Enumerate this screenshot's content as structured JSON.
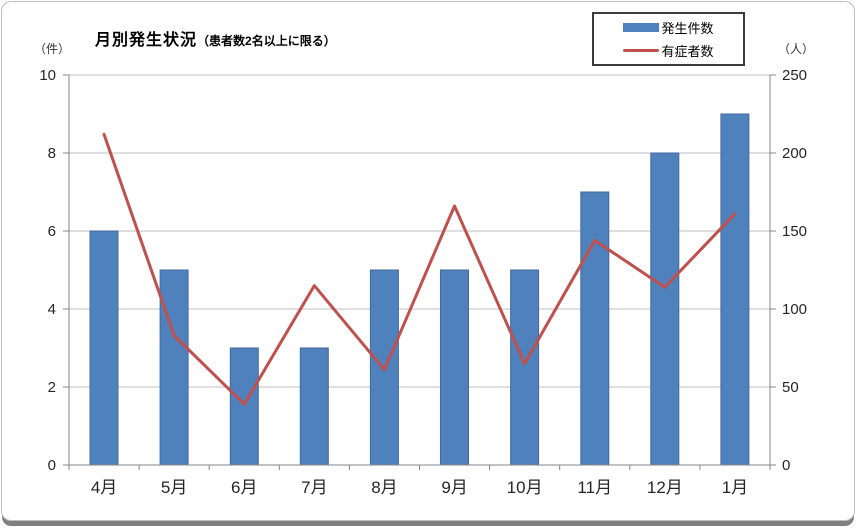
{
  "chart_data": {
    "type": "combo-bar-line",
    "title": "月別発生状況",
    "title_suffix": "（患者数2名以上に限る）",
    "categories": [
      "4月",
      "5月",
      "6月",
      "7月",
      "8月",
      "9月",
      "10月",
      "11月",
      "12月",
      "1月"
    ],
    "series": [
      {
        "name": "発生件数",
        "type": "bar",
        "axis": "left",
        "color": "#4F81BD",
        "values": [
          6,
          5,
          3,
          3,
          5,
          5,
          5,
          7,
          8,
          9
        ]
      },
      {
        "name": "有症者数",
        "type": "line",
        "axis": "right",
        "color": "#C0504D",
        "values": [
          212,
          83,
          39,
          115,
          61,
          166,
          65,
          144,
          114,
          161
        ]
      }
    ],
    "left_axis": {
      "label": "（件）",
      "min": 0,
      "max": 10,
      "ticks": [
        0,
        2,
        4,
        6,
        8,
        10
      ]
    },
    "right_axis": {
      "label": "（人）",
      "min": 0,
      "max": 250,
      "ticks": [
        0,
        50,
        100,
        150,
        200,
        250
      ]
    },
    "grid": true,
    "legend_position": "top-right",
    "colors": {
      "gridline": "#BFBFBF",
      "axis": "#868686",
      "tick_text": "#262626"
    }
  }
}
